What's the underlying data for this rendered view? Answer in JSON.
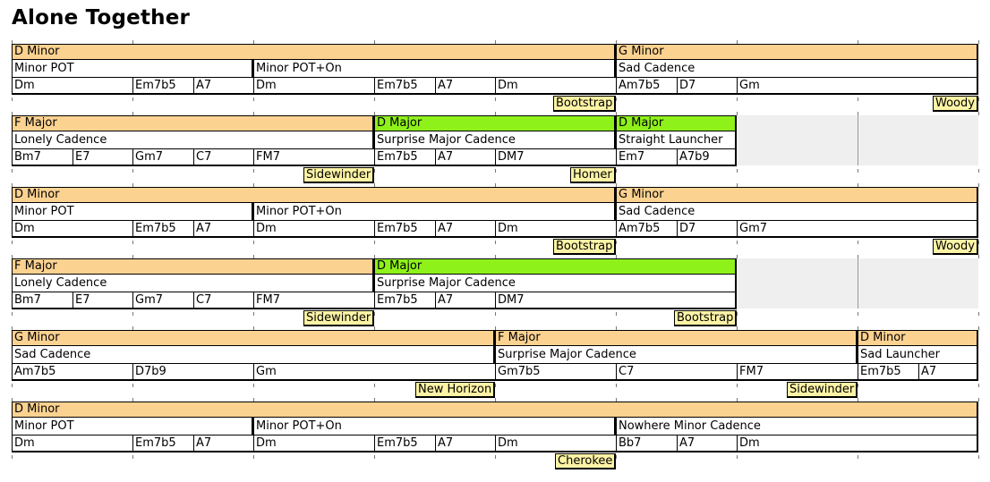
{
  "title": "Alone Together",
  "rows": [
    {
      "keys": [
        {
          "label": "D Minor",
          "span": [
            0,
            10
          ],
          "kind": "minor"
        },
        {
          "label": "G Minor",
          "span": [
            10,
            16
          ],
          "kind": "minor"
        }
      ],
      "bricks": [
        {
          "label": "Minor POT",
          "span": [
            0,
            4
          ]
        },
        {
          "label": "Minor POT+On",
          "span": [
            4,
            10
          ]
        },
        {
          "label": "Sad Cadence",
          "span": [
            10,
            16
          ]
        }
      ],
      "chords": [
        {
          "label": "Dm",
          "span": [
            0,
            2
          ]
        },
        {
          "label": "Em7b5",
          "span": [
            2,
            3
          ]
        },
        {
          "label": "A7",
          "span": [
            3,
            4
          ]
        },
        {
          "label": "Dm",
          "span": [
            4,
            6
          ]
        },
        {
          "label": "Em7b5",
          "span": [
            6,
            7
          ]
        },
        {
          "label": "A7",
          "span": [
            7,
            8
          ]
        },
        {
          "label": "Dm",
          "span": [
            8,
            10
          ]
        },
        {
          "label": "Am7b5",
          "span": [
            10,
            11
          ]
        },
        {
          "label": "D7",
          "span": [
            11,
            12
          ]
        },
        {
          "label": "Gm",
          "span": [
            12,
            16
          ]
        }
      ],
      "joins": [
        {
          "label": "Bootstrap",
          "at": 10
        },
        {
          "label": "Woody",
          "at": 16
        }
      ],
      "gap": null
    },
    {
      "keys": [
        {
          "label": "F Major",
          "span": [
            0,
            6
          ],
          "kind": "major"
        },
        {
          "label": "D Major",
          "span": [
            6,
            10
          ],
          "kind": "green"
        },
        {
          "label": "D Major",
          "span": [
            10,
            12
          ],
          "kind": "green"
        }
      ],
      "bricks": [
        {
          "label": "Lonely Cadence",
          "span": [
            0,
            6
          ]
        },
        {
          "label": "Surprise Major Cadence",
          "span": [
            6,
            10
          ]
        },
        {
          "label": "Straight Launcher",
          "span": [
            10,
            12
          ]
        }
      ],
      "chords": [
        {
          "label": "Bm7",
          "span": [
            0,
            1
          ]
        },
        {
          "label": "E7",
          "span": [
            1,
            2
          ]
        },
        {
          "label": "Gm7",
          "span": [
            2,
            3
          ]
        },
        {
          "label": "C7",
          "span": [
            3,
            4
          ]
        },
        {
          "label": "FM7",
          "span": [
            4,
            6
          ]
        },
        {
          "label": "Em7b5",
          "span": [
            6,
            7
          ]
        },
        {
          "label": "A7",
          "span": [
            7,
            8
          ]
        },
        {
          "label": "DM7",
          "span": [
            8,
            10
          ]
        },
        {
          "label": "Em7",
          "span": [
            10,
            11
          ]
        },
        {
          "label": "A7b9",
          "span": [
            11,
            12
          ]
        }
      ],
      "joins": [
        {
          "label": "Sidewinder",
          "at": 6
        },
        {
          "label": "Homer",
          "at": 10
        }
      ],
      "gap": [
        12,
        16
      ]
    },
    {
      "keys": [
        {
          "label": "D Minor",
          "span": [
            0,
            10
          ],
          "kind": "minor"
        },
        {
          "label": "G Minor",
          "span": [
            10,
            16
          ],
          "kind": "minor"
        }
      ],
      "bricks": [
        {
          "label": "Minor POT",
          "span": [
            0,
            4
          ]
        },
        {
          "label": "Minor POT+On",
          "span": [
            4,
            10
          ]
        },
        {
          "label": "Sad Cadence",
          "span": [
            10,
            16
          ]
        }
      ],
      "chords": [
        {
          "label": "Dm",
          "span": [
            0,
            2
          ]
        },
        {
          "label": "Em7b5",
          "span": [
            2,
            3
          ]
        },
        {
          "label": "A7",
          "span": [
            3,
            4
          ]
        },
        {
          "label": "Dm",
          "span": [
            4,
            6
          ]
        },
        {
          "label": "Em7b5",
          "span": [
            6,
            7
          ]
        },
        {
          "label": "A7",
          "span": [
            7,
            8
          ]
        },
        {
          "label": "Dm",
          "span": [
            8,
            10
          ]
        },
        {
          "label": "Am7b5",
          "span": [
            10,
            11
          ]
        },
        {
          "label": "D7",
          "span": [
            11,
            12
          ]
        },
        {
          "label": "Gm7",
          "span": [
            12,
            16
          ]
        }
      ],
      "joins": [
        {
          "label": "Bootstrap",
          "at": 10
        },
        {
          "label": "Woody",
          "at": 16
        }
      ],
      "gap": null
    },
    {
      "keys": [
        {
          "label": "F Major",
          "span": [
            0,
            6
          ],
          "kind": "major"
        },
        {
          "label": "D Major",
          "span": [
            6,
            12
          ],
          "kind": "green"
        }
      ],
      "bricks": [
        {
          "label": "Lonely Cadence",
          "span": [
            0,
            6
          ]
        },
        {
          "label": "Surprise Major Cadence",
          "span": [
            6,
            12
          ]
        }
      ],
      "chords": [
        {
          "label": "Bm7",
          "span": [
            0,
            1
          ]
        },
        {
          "label": "E7",
          "span": [
            1,
            2
          ]
        },
        {
          "label": "Gm7",
          "span": [
            2,
            3
          ]
        },
        {
          "label": "C7",
          "span": [
            3,
            4
          ]
        },
        {
          "label": "FM7",
          "span": [
            4,
            6
          ]
        },
        {
          "label": "Em7b5",
          "span": [
            6,
            7
          ]
        },
        {
          "label": "A7",
          "span": [
            7,
            8
          ]
        },
        {
          "label": "DM7",
          "span": [
            8,
            12
          ]
        }
      ],
      "joins": [
        {
          "label": "Sidewinder",
          "at": 6
        },
        {
          "label": "Bootstrap",
          "at": 12
        }
      ],
      "gap": [
        12,
        16
      ]
    },
    {
      "keys": [
        {
          "label": "G Minor",
          "span": [
            0,
            8
          ],
          "kind": "minor"
        },
        {
          "label": "F Major",
          "span": [
            8,
            14
          ],
          "kind": "major"
        },
        {
          "label": "D Minor",
          "span": [
            14,
            16
          ],
          "kind": "minor"
        }
      ],
      "bricks": [
        {
          "label": "Sad Cadence",
          "span": [
            0,
            8
          ]
        },
        {
          "label": "Surprise Major Cadence",
          "span": [
            8,
            14
          ]
        },
        {
          "label": "Sad Launcher",
          "span": [
            14,
            16
          ]
        }
      ],
      "chords": [
        {
          "label": "Am7b5",
          "span": [
            0,
            2
          ]
        },
        {
          "label": "D7b9",
          "span": [
            2,
            4
          ]
        },
        {
          "label": "Gm",
          "span": [
            4,
            8
          ]
        },
        {
          "label": "Gm7b5",
          "span": [
            8,
            10
          ]
        },
        {
          "label": "C7",
          "span": [
            10,
            12
          ]
        },
        {
          "label": "FM7",
          "span": [
            12,
            14
          ]
        },
        {
          "label": "Em7b5",
          "span": [
            14,
            15
          ]
        },
        {
          "label": "A7",
          "span": [
            15,
            16
          ]
        }
      ],
      "joins": [
        {
          "label": "New Horizon",
          "at": 8
        },
        {
          "label": "Sidewinder",
          "at": 14
        }
      ],
      "gap": null
    },
    {
      "keys": [
        {
          "label": "D Minor",
          "span": [
            0,
            16
          ],
          "kind": "minor"
        }
      ],
      "bricks": [
        {
          "label": "Minor POT",
          "span": [
            0,
            4
          ]
        },
        {
          "label": "Minor POT+On",
          "span": [
            4,
            10
          ]
        },
        {
          "label": "Nowhere Minor Cadence",
          "span": [
            10,
            16
          ]
        }
      ],
      "chords": [
        {
          "label": "Dm",
          "span": [
            0,
            2
          ]
        },
        {
          "label": "Em7b5",
          "span": [
            2,
            3
          ]
        },
        {
          "label": "A7",
          "span": [
            3,
            4
          ]
        },
        {
          "label": "Dm",
          "span": [
            4,
            6
          ]
        },
        {
          "label": "Em7b5",
          "span": [
            6,
            7
          ]
        },
        {
          "label": "A7",
          "span": [
            7,
            8
          ]
        },
        {
          "label": "Dm",
          "span": [
            8,
            10
          ]
        },
        {
          "label": "Bb7",
          "span": [
            10,
            11
          ]
        },
        {
          "label": "A7",
          "span": [
            11,
            12
          ]
        },
        {
          "label": "Dm",
          "span": [
            12,
            16
          ]
        }
      ],
      "joins": [
        {
          "label": "Cherokee",
          "at": 10
        }
      ],
      "gap": null
    }
  ]
}
